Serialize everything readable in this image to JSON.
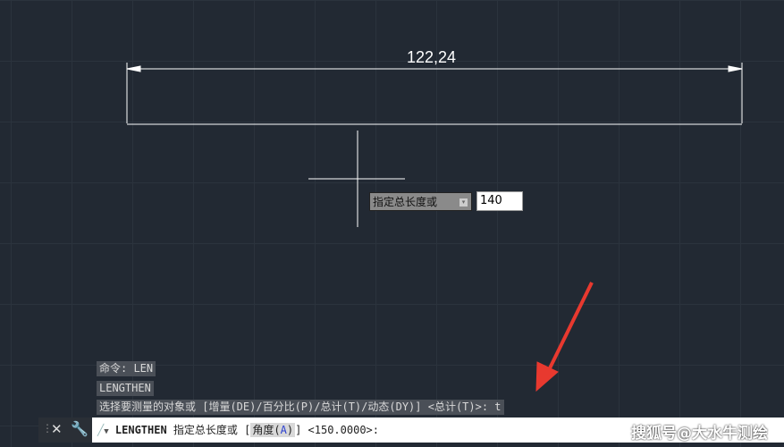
{
  "drawing": {
    "dimension_value": "122,24"
  },
  "dynamic_input": {
    "prompt": "指定总长度或",
    "value": "140"
  },
  "history": [
    "命令: LEN",
    "LENGTHEN",
    "选择要测量的对象或 [增量(DE)/百分比(P)/总计(T)/动态(DY)] <总计(T)>: t"
  ],
  "command_line": {
    "command": "LENGTHEN",
    "prompt": "指定总长度或 [",
    "option_label": "角度(",
    "option_key": "A",
    "option_close": ")",
    "suffix": "] <150.0000>:"
  },
  "watermark": "搜狐号@大水牛测绘",
  "colors": {
    "background": "#222933",
    "arrow": "#e8392f",
    "option_key": "#2a3fd0"
  }
}
